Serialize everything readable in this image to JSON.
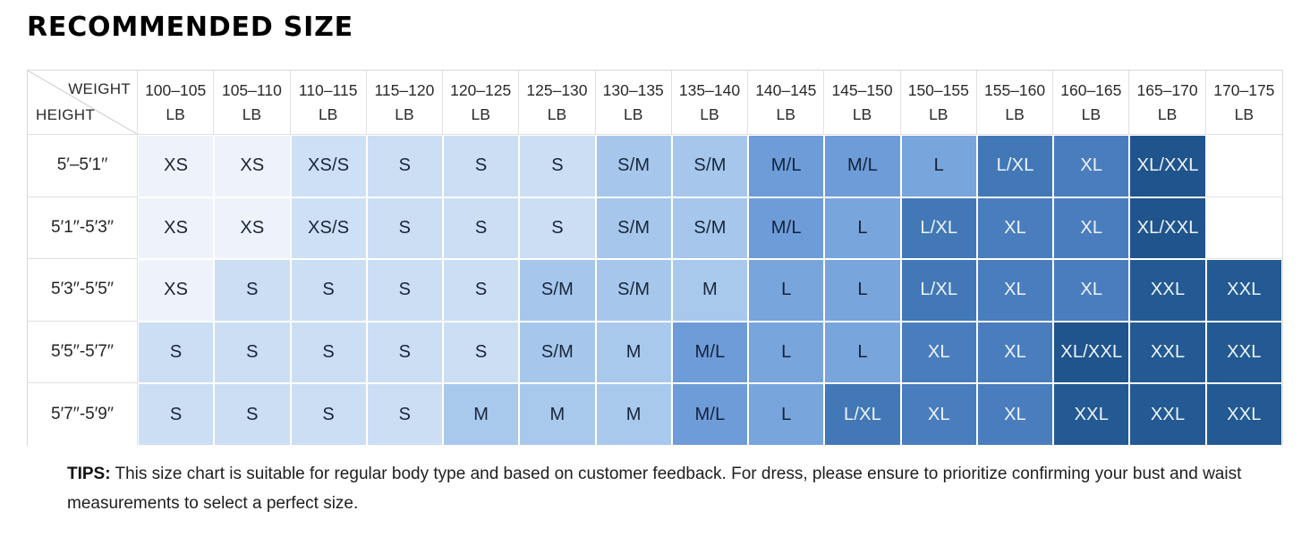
{
  "title": "RECOMMENDED SIZE",
  "chart_data": {
    "type": "heatmap",
    "title": "RECOMMENDED SIZE",
    "corner": {
      "weight": "WEIGHT",
      "height": "HEIGHT"
    },
    "weight_unit": "LB",
    "weight_columns": [
      "100–105",
      "105–110",
      "110–115",
      "115–120",
      "120–125",
      "125–130",
      "130–135",
      "135–140",
      "140–145",
      "145–150",
      "150–155",
      "155–160",
      "160–165",
      "165–170",
      "170–175"
    ],
    "rows": [
      {
        "height": "5′–5′1′′",
        "sizes": [
          "XS",
          "XS",
          "XS/S",
          "S",
          "S",
          "S",
          "S/M",
          "S/M",
          "M/L",
          "M/L",
          "L",
          "L/XL",
          "XL",
          "XL/XXL",
          ""
        ]
      },
      {
        "height": "5′1′′-5′3′′",
        "sizes": [
          "XS",
          "XS",
          "XS/S",
          "S",
          "S",
          "S",
          "S/M",
          "S/M",
          "M/L",
          "L",
          "L/XL",
          "XL",
          "XL",
          "XL/XXL",
          ""
        ]
      },
      {
        "height": "5′3′′-5′5′′",
        "sizes": [
          "XS",
          "S",
          "S",
          "S",
          "S",
          "S/M",
          "S/M",
          "M",
          "L",
          "L",
          "L/XL",
          "XL",
          "XL",
          "XXL",
          "XXL"
        ]
      },
      {
        "height": "5′5′′-5′7′′",
        "sizes": [
          "S",
          "S",
          "S",
          "S",
          "S",
          "S/M",
          "M",
          "M/L",
          "L",
          "L",
          "XL",
          "XL",
          "XL/XXL",
          "XXL",
          "XXL"
        ]
      },
      {
        "height": "5′7′′-5′9′′",
        "sizes": [
          "S",
          "S",
          "S",
          "S",
          "M",
          "M",
          "M",
          "M/L",
          "L",
          "L/XL",
          "XL",
          "XL",
          "XXL",
          "XXL",
          "XXL"
        ]
      }
    ]
  },
  "size_colors": {
    "XS": {
      "bg": "#EEF3FB",
      "fg": "#1A2436"
    },
    "XS/S": {
      "bg": "#CDE0F5",
      "fg": "#1A2436"
    },
    "S": {
      "bg": "#CBDEF4",
      "fg": "#1A2436"
    },
    "S/M": {
      "bg": "#A6C7EB",
      "fg": "#18263C"
    },
    "M": {
      "bg": "#A9C9EC",
      "fg": "#18263C"
    },
    "M/L": {
      "bg": "#6E9CD8",
      "fg": "#14223A"
    },
    "L": {
      "bg": "#78A5DC",
      "fg": "#14223A"
    },
    "L/XL": {
      "bg": "#4378B7",
      "fg": "#EFF5FB"
    },
    "XL": {
      "bg": "#4A7DBD",
      "fg": "#EFF5FB"
    },
    "XL/XXL": {
      "bg": "#20548D",
      "fg": "#EFF5FB"
    },
    "XXL": {
      "bg": "#235A93",
      "fg": "#EFF5FB"
    }
  },
  "tips": {
    "label": "TIPS:",
    "text": "This size chart is suitable for regular body type and based on customer feedback. For dress, please ensure to prioritize confirming your bust and waist measurements to select a perfect size."
  }
}
